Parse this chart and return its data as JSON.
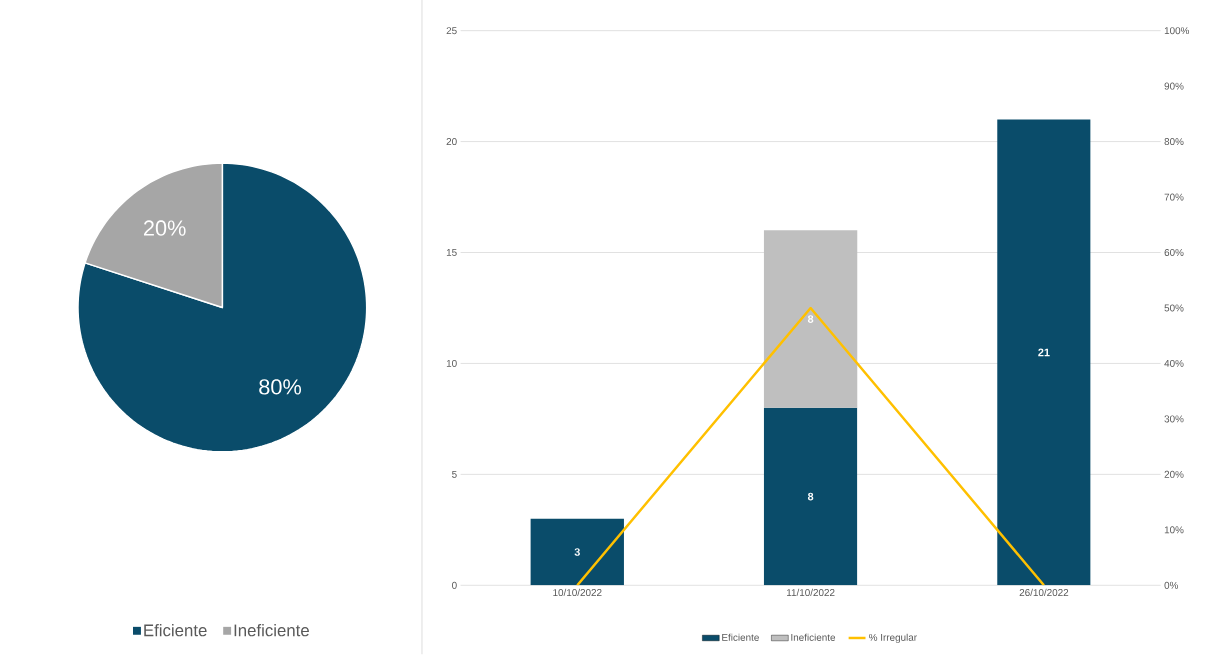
{
  "chart_data": [
    {
      "type": "pie",
      "categories": [
        "Eficiente",
        "Ineficiente"
      ],
      "values": [
        80,
        20
      ],
      "colors": [
        "#0a4c6a",
        "#a6a6a6"
      ],
      "value_labels": [
        "80%",
        "20%"
      ],
      "legend": "bottom"
    },
    {
      "type": "bar",
      "categories": [
        "10/10/2022",
        "11/10/2022",
        "26/10/2022"
      ],
      "stacked": true,
      "series": [
        {
          "name": "Eficiente",
          "color": "#0a4c6a",
          "values": [
            3,
            8,
            21
          ],
          "value_labels": [
            "3",
            "8",
            "21"
          ]
        },
        {
          "name": "Ineficiente",
          "color": "#bfbfbf",
          "values": [
            null,
            8,
            null
          ],
          "value_labels": [
            null,
            "8",
            null
          ]
        },
        {
          "name": "% Irregular",
          "type": "line",
          "axis": "y2",
          "color": "#ffc000",
          "values": [
            0,
            50,
            0
          ]
        }
      ],
      "ylim": [
        0,
        25
      ],
      "yticks": [
        0,
        5,
        10,
        15,
        20,
        25
      ],
      "y2lim": [
        0,
        100
      ],
      "y2ticks": [
        {
          "value": 0,
          "label": "0%"
        },
        {
          "value": 10,
          "label": "10%"
        },
        {
          "value": 20,
          "label": "20%"
        },
        {
          "value": 30,
          "label": "30%"
        },
        {
          "value": 40,
          "label": "40%"
        },
        {
          "value": 50,
          "label": "50%"
        },
        {
          "value": 60,
          "label": "60%"
        },
        {
          "value": 70,
          "label": "70%"
        },
        {
          "value": 80,
          "label": "80%"
        },
        {
          "value": 90,
          "label": "90%"
        },
        {
          "value": 100,
          "label": "100%"
        }
      ],
      "grid": "y",
      "legend": "bottom"
    }
  ]
}
